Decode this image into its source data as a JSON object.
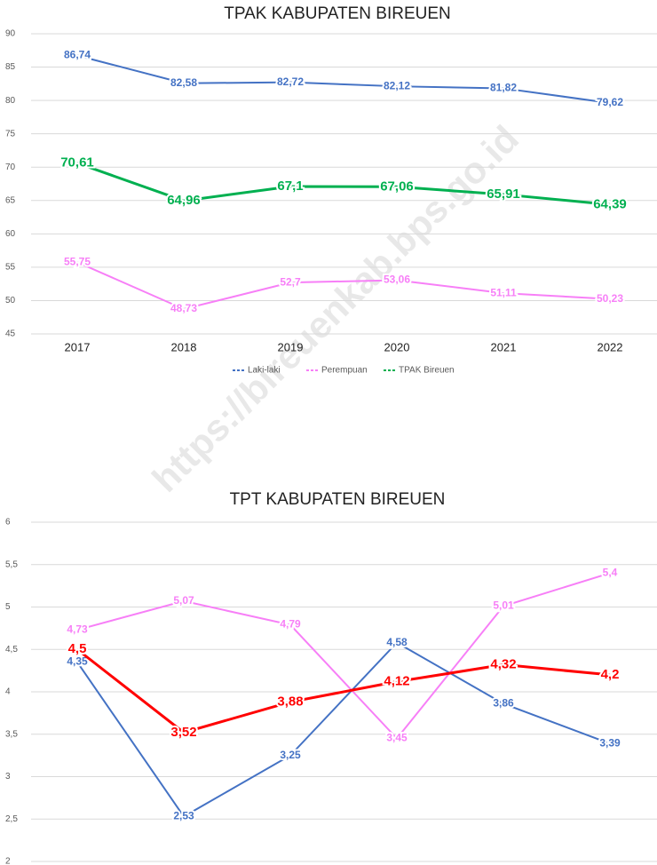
{
  "watermark": "https://bireuenkab.bps.go.id",
  "chart_data": [
    {
      "type": "line",
      "title": "TPAK KABUPATEN BIREUEN",
      "categories": [
        "2017",
        "2018",
        "2019",
        "2020",
        "2021",
        "2022"
      ],
      "ylim": [
        45,
        90
      ],
      "yticks": [
        45,
        50,
        55,
        60,
        65,
        70,
        75,
        80,
        85,
        90
      ],
      "grid": true,
      "legend": "bottom",
      "series": [
        {
          "name": "Laki-laki",
          "color": "#4472c4",
          "values": [
            86.74,
            82.58,
            82.72,
            82.12,
            81.82,
            79.62
          ],
          "value_labels": [
            "86,74",
            "82,58",
            "82,72",
            "82,12",
            "81,82",
            "79,62"
          ]
        },
        {
          "name": "Perempuan",
          "color": "#f77ff7",
          "values": [
            55.75,
            48.73,
            52.7,
            53.06,
            51.11,
            50.23
          ],
          "value_labels": [
            "55,75",
            "48,73",
            "52,7",
            "53,06",
            "51,11",
            "50,23"
          ]
        },
        {
          "name": "TPAK Bireuen",
          "color": "#00b050",
          "values": [
            70.61,
            64.96,
            67.1,
            67.06,
            65.91,
            64.39
          ],
          "value_labels": [
            "70,61",
            "64,96",
            "67,1",
            "67,06",
            "65,91",
            "64,39"
          ]
        }
      ]
    },
    {
      "type": "line",
      "title": "TPT KABUPATEN BIREUEN",
      "ylim": [
        2,
        6
      ],
      "yticks": [
        2,
        {
          "value": 2.5,
          "label": "2,5"
        },
        3,
        {
          "value": 3.5,
          "label": "3,5"
        },
        4,
        {
          "value": 4.5,
          "label": "4,5"
        },
        5,
        {
          "value": 5.5,
          "label": "5,5"
        },
        6
      ],
      "grid": true,
      "series": [
        {
          "color": "#f77ff7",
          "values": [
            4.73,
            5.07,
            4.79,
            3.45,
            5.01,
            5.4
          ],
          "value_labels": [
            "4,73",
            "5,07",
            "4,79",
            "3,45",
            "5,01",
            "5,4"
          ]
        },
        {
          "color": "#4472c4",
          "values": [
            4.35,
            2.53,
            3.25,
            4.58,
            3.86,
            3.39
          ],
          "value_labels": [
            "4,35",
            "2,53",
            "3,25",
            "4,58",
            "3,86",
            "3,39"
          ]
        },
        {
          "color": "#ff0000",
          "values": [
            4.5,
            3.52,
            3.88,
            4.12,
            4.32,
            4.2
          ],
          "value_labels": [
            "4,5",
            "3,52",
            "3,88",
            "4,12",
            "4,32",
            "4,2"
          ]
        }
      ]
    }
  ]
}
